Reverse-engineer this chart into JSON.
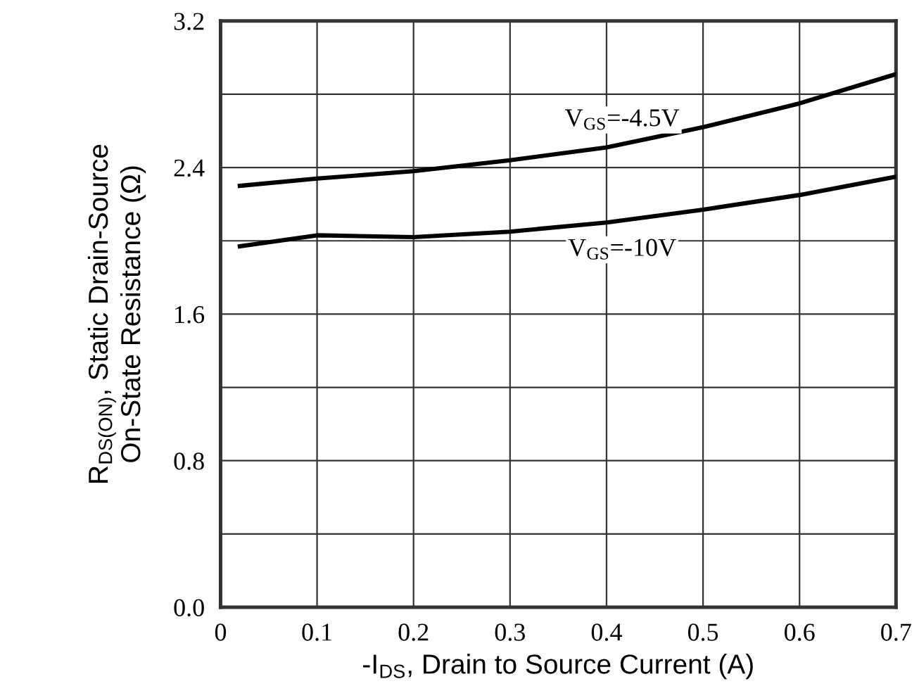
{
  "chart_data": {
    "type": "line",
    "xlabel": "-I$_{DS}$, Drain to Source Current (A)",
    "ylabel": "R$_{DS(ON)}$, Static Drain-Source\nOn-State Resistance (Ω)",
    "x": [
      0.02,
      0.1,
      0.2,
      0.3,
      0.4,
      0.5,
      0.6,
      0.7
    ],
    "series": [
      {
        "name": "V$_{GS}$=-4.5V",
        "color": "#000000",
        "values": [
          2.3,
          2.34,
          2.38,
          2.44,
          2.51,
          2.62,
          2.75,
          2.91
        ]
      },
      {
        "name": "V$_{GS}$=-10V",
        "color": "#000000",
        "values": [
          1.97,
          2.03,
          2.02,
          2.05,
          2.1,
          2.17,
          2.25,
          2.35
        ]
      }
    ],
    "xlim": [
      0,
      0.7
    ],
    "xticks": [
      0,
      0.1,
      0.2,
      0.3,
      0.4,
      0.5,
      0.6,
      0.7
    ],
    "ylim": [
      0,
      3.2
    ],
    "yticks": [
      {
        "value": 0,
        "label": "0.0"
      },
      {
        "value": 0.4,
        "label": null
      },
      0.8,
      {
        "value": 1.2,
        "label": null
      },
      1.6,
      {
        "value": 2.0,
        "label": null
      },
      2.4,
      {
        "value": 2.8,
        "label": null
      },
      3.2
    ],
    "grid": true,
    "legend": false,
    "marker": "none",
    "line_style": "solid"
  }
}
